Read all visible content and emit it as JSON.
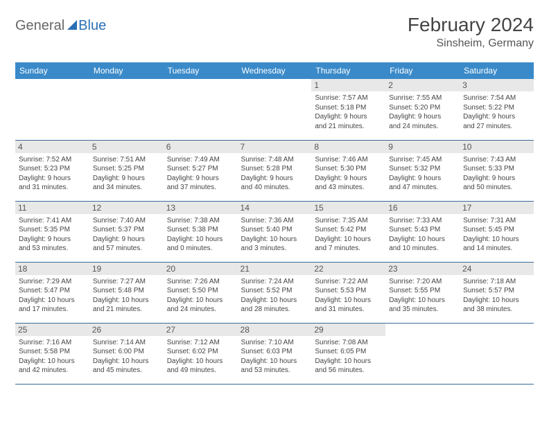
{
  "logo": {
    "general": "General",
    "blue": "Blue"
  },
  "title": "February 2024",
  "location": "Sinsheim, Germany",
  "daysOfWeek": [
    "Sunday",
    "Monday",
    "Tuesday",
    "Wednesday",
    "Thursday",
    "Friday",
    "Saturday"
  ],
  "colors": {
    "header_bg": "#3a8ac9",
    "header_text": "#ffffff",
    "daynum_bg": "#e8e8e8",
    "border": "#3a6a9a",
    "logo_blue": "#2a6fb5",
    "text": "#444444"
  },
  "weeks": [
    [
      null,
      null,
      null,
      null,
      {
        "n": "1",
        "sr": "Sunrise: 7:57 AM",
        "ss": "Sunset: 5:18 PM",
        "d1": "Daylight: 9 hours",
        "d2": "and 21 minutes."
      },
      {
        "n": "2",
        "sr": "Sunrise: 7:55 AM",
        "ss": "Sunset: 5:20 PM",
        "d1": "Daylight: 9 hours",
        "d2": "and 24 minutes."
      },
      {
        "n": "3",
        "sr": "Sunrise: 7:54 AM",
        "ss": "Sunset: 5:22 PM",
        "d1": "Daylight: 9 hours",
        "d2": "and 27 minutes."
      }
    ],
    [
      {
        "n": "4",
        "sr": "Sunrise: 7:52 AM",
        "ss": "Sunset: 5:23 PM",
        "d1": "Daylight: 9 hours",
        "d2": "and 31 minutes."
      },
      {
        "n": "5",
        "sr": "Sunrise: 7:51 AM",
        "ss": "Sunset: 5:25 PM",
        "d1": "Daylight: 9 hours",
        "d2": "and 34 minutes."
      },
      {
        "n": "6",
        "sr": "Sunrise: 7:49 AM",
        "ss": "Sunset: 5:27 PM",
        "d1": "Daylight: 9 hours",
        "d2": "and 37 minutes."
      },
      {
        "n": "7",
        "sr": "Sunrise: 7:48 AM",
        "ss": "Sunset: 5:28 PM",
        "d1": "Daylight: 9 hours",
        "d2": "and 40 minutes."
      },
      {
        "n": "8",
        "sr": "Sunrise: 7:46 AM",
        "ss": "Sunset: 5:30 PM",
        "d1": "Daylight: 9 hours",
        "d2": "and 43 minutes."
      },
      {
        "n": "9",
        "sr": "Sunrise: 7:45 AM",
        "ss": "Sunset: 5:32 PM",
        "d1": "Daylight: 9 hours",
        "d2": "and 47 minutes."
      },
      {
        "n": "10",
        "sr": "Sunrise: 7:43 AM",
        "ss": "Sunset: 5:33 PM",
        "d1": "Daylight: 9 hours",
        "d2": "and 50 minutes."
      }
    ],
    [
      {
        "n": "11",
        "sr": "Sunrise: 7:41 AM",
        "ss": "Sunset: 5:35 PM",
        "d1": "Daylight: 9 hours",
        "d2": "and 53 minutes."
      },
      {
        "n": "12",
        "sr": "Sunrise: 7:40 AM",
        "ss": "Sunset: 5:37 PM",
        "d1": "Daylight: 9 hours",
        "d2": "and 57 minutes."
      },
      {
        "n": "13",
        "sr": "Sunrise: 7:38 AM",
        "ss": "Sunset: 5:38 PM",
        "d1": "Daylight: 10 hours",
        "d2": "and 0 minutes."
      },
      {
        "n": "14",
        "sr": "Sunrise: 7:36 AM",
        "ss": "Sunset: 5:40 PM",
        "d1": "Daylight: 10 hours",
        "d2": "and 3 minutes."
      },
      {
        "n": "15",
        "sr": "Sunrise: 7:35 AM",
        "ss": "Sunset: 5:42 PM",
        "d1": "Daylight: 10 hours",
        "d2": "and 7 minutes."
      },
      {
        "n": "16",
        "sr": "Sunrise: 7:33 AM",
        "ss": "Sunset: 5:43 PM",
        "d1": "Daylight: 10 hours",
        "d2": "and 10 minutes."
      },
      {
        "n": "17",
        "sr": "Sunrise: 7:31 AM",
        "ss": "Sunset: 5:45 PM",
        "d1": "Daylight: 10 hours",
        "d2": "and 14 minutes."
      }
    ],
    [
      {
        "n": "18",
        "sr": "Sunrise: 7:29 AM",
        "ss": "Sunset: 5:47 PM",
        "d1": "Daylight: 10 hours",
        "d2": "and 17 minutes."
      },
      {
        "n": "19",
        "sr": "Sunrise: 7:27 AM",
        "ss": "Sunset: 5:48 PM",
        "d1": "Daylight: 10 hours",
        "d2": "and 21 minutes."
      },
      {
        "n": "20",
        "sr": "Sunrise: 7:26 AM",
        "ss": "Sunset: 5:50 PM",
        "d1": "Daylight: 10 hours",
        "d2": "and 24 minutes."
      },
      {
        "n": "21",
        "sr": "Sunrise: 7:24 AM",
        "ss": "Sunset: 5:52 PM",
        "d1": "Daylight: 10 hours",
        "d2": "and 28 minutes."
      },
      {
        "n": "22",
        "sr": "Sunrise: 7:22 AM",
        "ss": "Sunset: 5:53 PM",
        "d1": "Daylight: 10 hours",
        "d2": "and 31 minutes."
      },
      {
        "n": "23",
        "sr": "Sunrise: 7:20 AM",
        "ss": "Sunset: 5:55 PM",
        "d1": "Daylight: 10 hours",
        "d2": "and 35 minutes."
      },
      {
        "n": "24",
        "sr": "Sunrise: 7:18 AM",
        "ss": "Sunset: 5:57 PM",
        "d1": "Daylight: 10 hours",
        "d2": "and 38 minutes."
      }
    ],
    [
      {
        "n": "25",
        "sr": "Sunrise: 7:16 AM",
        "ss": "Sunset: 5:58 PM",
        "d1": "Daylight: 10 hours",
        "d2": "and 42 minutes."
      },
      {
        "n": "26",
        "sr": "Sunrise: 7:14 AM",
        "ss": "Sunset: 6:00 PM",
        "d1": "Daylight: 10 hours",
        "d2": "and 45 minutes."
      },
      {
        "n": "27",
        "sr": "Sunrise: 7:12 AM",
        "ss": "Sunset: 6:02 PM",
        "d1": "Daylight: 10 hours",
        "d2": "and 49 minutes."
      },
      {
        "n": "28",
        "sr": "Sunrise: 7:10 AM",
        "ss": "Sunset: 6:03 PM",
        "d1": "Daylight: 10 hours",
        "d2": "and 53 minutes."
      },
      {
        "n": "29",
        "sr": "Sunrise: 7:08 AM",
        "ss": "Sunset: 6:05 PM",
        "d1": "Daylight: 10 hours",
        "d2": "and 56 minutes."
      },
      null,
      null
    ]
  ]
}
